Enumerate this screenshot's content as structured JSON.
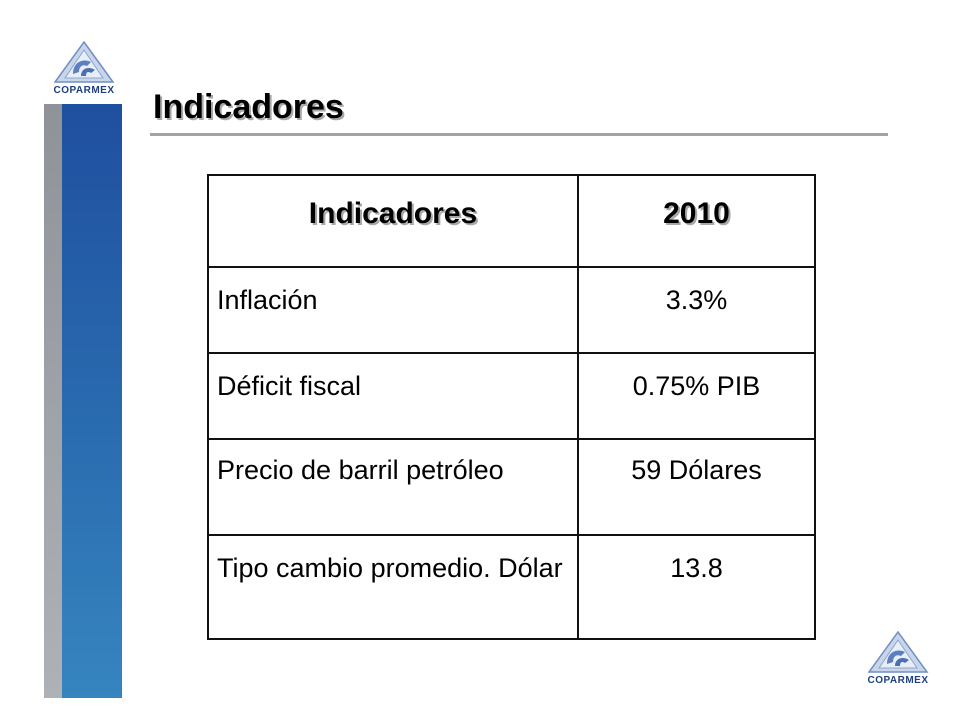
{
  "logo": {
    "text": "COPARMEX",
    "icon": "coparmex-logo-icon",
    "color": "#1f3f80"
  },
  "title": "Indicadores",
  "table": {
    "headers": [
      "Indicadores",
      "2010"
    ],
    "rows": [
      {
        "label": "Inflación",
        "value": "3.3%"
      },
      {
        "label": "Déficit fiscal",
        "value": "0.75% PIB"
      },
      {
        "label": "Precio de barril petróleo",
        "value": "59 Dólares"
      },
      {
        "label": "Tipo cambio promedio. Dólar",
        "value": "13.8"
      }
    ]
  },
  "colors": {
    "sidebar_blue": "#2a6cb0",
    "sidebar_grey": "#9a9ea4",
    "rule": "#a3a3a3"
  }
}
